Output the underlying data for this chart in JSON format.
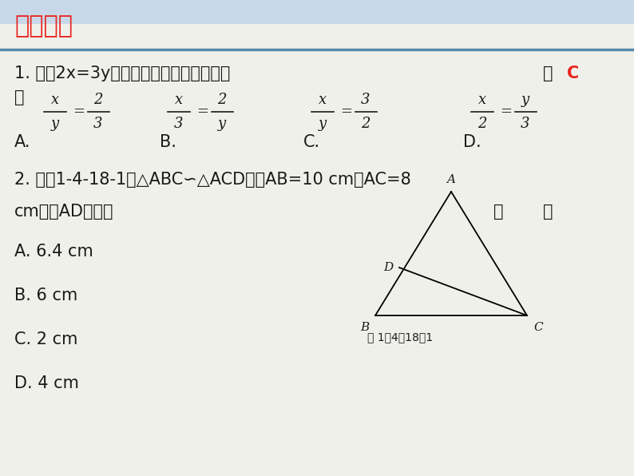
{
  "bg_color": "#f0f0eb",
  "title_text": "课前热身",
  "title_color": "#e8251f",
  "title_underline_color": "#5588aa",
  "q1_line1": "1. 如果2x=3y，那么下列比例式正确的是",
  "q1_answer_bracket": "（ ",
  "q1_answer_c": "C",
  "q1_answer_paren": "）",
  "q1_formulas": [
    {
      "label": "A.",
      "expr_num": "x",
      "expr_den": "y",
      "rhs_num": "2",
      "rhs_den": "3"
    },
    {
      "label": "B.",
      "expr_num": "x",
      "expr_den": "3",
      "rhs_num": "2",
      "rhs_den": "y"
    },
    {
      "label": "C.",
      "expr_num": "x",
      "expr_den": "y",
      "rhs_num": "3",
      "rhs_den": "2"
    },
    {
      "label": "D.",
      "expr_num": "x",
      "expr_den": "2",
      "rhs_num": "y",
      "rhs_den": "3"
    }
  ],
  "q2_line1": "2. 如图1-4-18-1，△ABC∽△ACD，且AB=10 cm，AC=8",
  "q2_line2": "cm，则AD的长是",
  "q2_options": [
    "A. 6.4 cm",
    "B. 6 cm",
    "C. 2 cm",
    "D. 4 cm"
  ],
  "fig_caption": "图 1－4－18－1",
  "text_color": "#1a1a1a",
  "answer_color": "#e8251f",
  "header_gradient_color": "#b8cfe8"
}
